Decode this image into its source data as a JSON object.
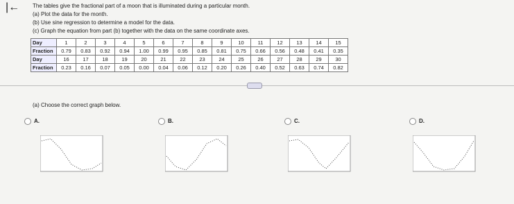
{
  "header": {
    "intro": "The tables give the fractional part of a moon that is illuminated during a particular month.",
    "parts": [
      "(a) Plot the data for the month.",
      "(b) Use sine regression to determine a model for the data.",
      "(c) Graph the equation from part (b) together with the data on the same coordinate axes."
    ]
  },
  "table": {
    "rows": [
      [
        "Day",
        1,
        2,
        3,
        4,
        5,
        6,
        7,
        8,
        9,
        10,
        11,
        12,
        13,
        14,
        15
      ],
      [
        "Fraction",
        "0.79",
        "0.83",
        "0.92",
        "0.94",
        "1.00",
        "0.99",
        "0.95",
        "0.85",
        "0.81",
        "0.75",
        "0.66",
        "0.56",
        "0.48",
        "0.41",
        "0.35"
      ],
      [
        "Day",
        16,
        17,
        18,
        19,
        20,
        21,
        22,
        23,
        24,
        25,
        26,
        27,
        28,
        29,
        30
      ],
      [
        "Fraction",
        "0.23",
        "0.16",
        "0.07",
        "0.05",
        "0.00",
        "0.04",
        "0.06",
        "0.12",
        "0.20",
        "0.26",
        "0.40",
        "0.52",
        "0.63",
        "0.74",
        "0.82"
      ]
    ]
  },
  "question": "(a) Choose the correct graph below.",
  "options": [
    "A.",
    "B.",
    "C.",
    "D."
  ]
}
